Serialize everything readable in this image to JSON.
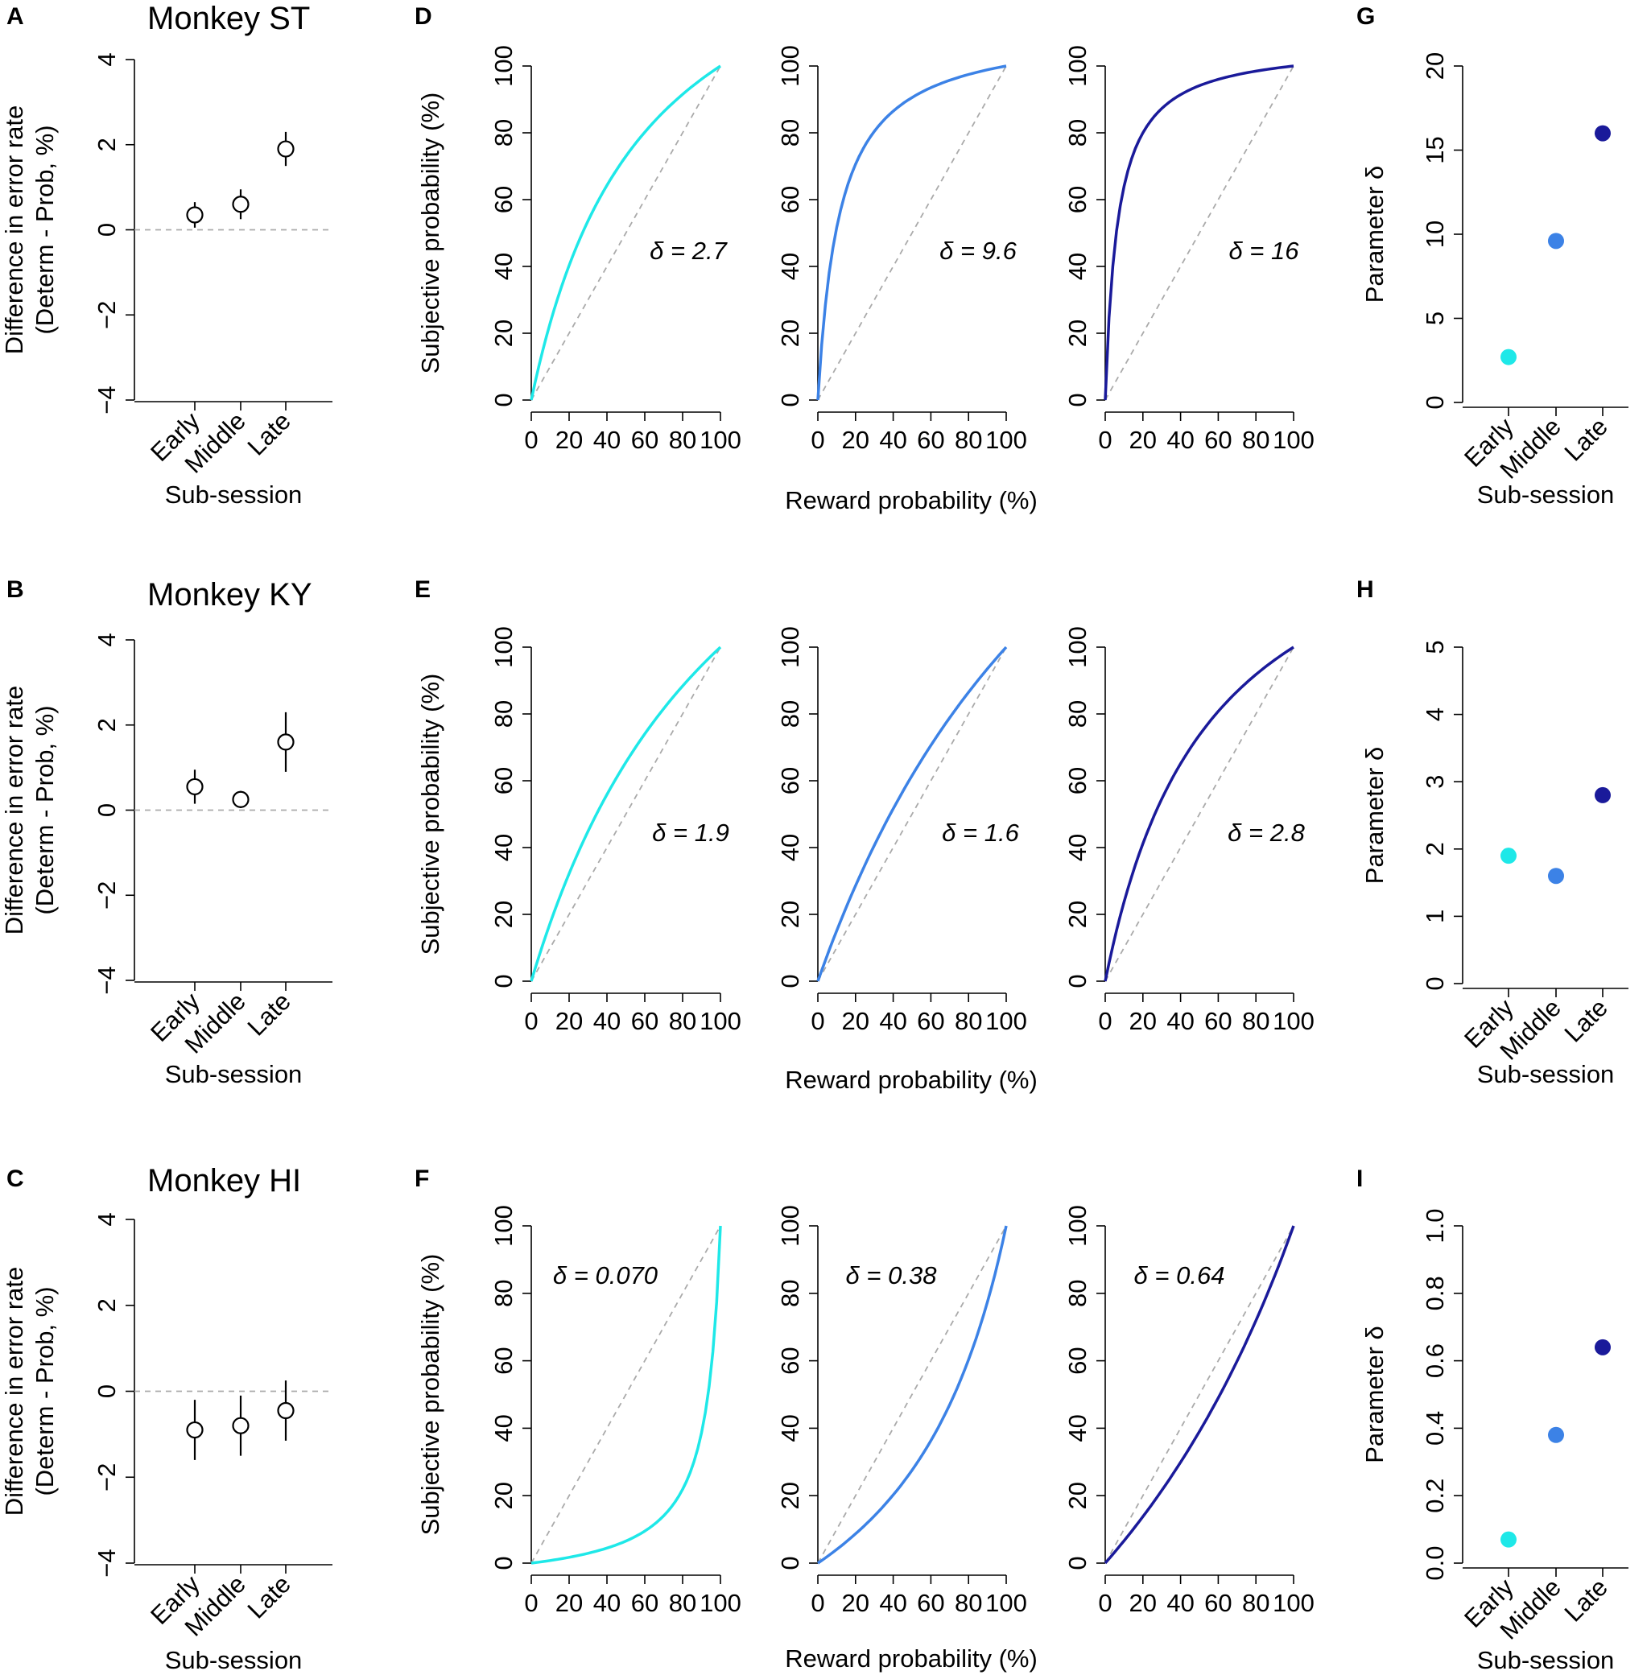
{
  "panel_letters": {
    "A": "A",
    "B": "B",
    "C": "C",
    "D": "D",
    "E": "E",
    "F": "F",
    "G": "G",
    "H": "H",
    "I": "I"
  },
  "x_axis_title_subsession": "Sub-session",
  "x_axis_title_reward": "Reward probability (%)",
  "y_axis_title_error_line1": "Difference in error rate",
  "y_axis_title_error_line2": "(Determ - Prob, %)",
  "y_axis_title_subjective": "Subjective probability (%)",
  "y_axis_title_param": "Parameter δ",
  "colors": {
    "early": "#1ee8e8",
    "middle": "#3c82e6",
    "late": "#1a1a9a",
    "ref_line": "#aaaaaa"
  },
  "chart_data": [
    {
      "id": "A",
      "type": "scatter",
      "title": "Monkey ST",
      "categories": [
        "Early",
        "Middle",
        "Late"
      ],
      "values": [
        0.35,
        0.6,
        1.9
      ],
      "error": [
        0.3,
        0.35,
        0.4
      ],
      "ylim": [
        -4,
        4
      ],
      "yticks": [
        "-4",
        "-2",
        "0",
        "2",
        "4"
      ],
      "reference_line": 0,
      "xlabel": "Sub-session",
      "ylabel": "Difference in error rate (Determ - Prob, %)"
    },
    {
      "id": "B",
      "type": "scatter",
      "title": "Monkey KY",
      "categories": [
        "Early",
        "Middle",
        "Late"
      ],
      "values": [
        0.55,
        0.25,
        1.6
      ],
      "error": [
        0.4,
        0.2,
        0.7
      ],
      "ylim": [
        -4,
        4
      ],
      "yticks": [
        "-4",
        "-2",
        "0",
        "2",
        "4"
      ],
      "reference_line": 0,
      "xlabel": "Sub-session",
      "ylabel": "Difference in error rate (Determ - Prob, %)"
    },
    {
      "id": "C",
      "type": "scatter",
      "title": "Monkey HI",
      "categories": [
        "Early",
        "Middle",
        "Late"
      ],
      "values": [
        -0.9,
        -0.8,
        -0.45
      ],
      "error": [
        0.7,
        0.7,
        0.7
      ],
      "ylim": [
        -4,
        4
      ],
      "yticks": [
        "-4",
        "-2",
        "0",
        "2",
        "4"
      ],
      "reference_line": 0,
      "xlabel": "Sub-session",
      "ylabel": "Difference in error rate (Determ - Prob, %)"
    },
    {
      "id": "D",
      "type": "line",
      "xlabel": "Reward probability (%)",
      "ylabel": "Subjective probability (%)",
      "xlim": [
        0,
        100
      ],
      "ylim": [
        0,
        100
      ],
      "xticks": [
        "0",
        "20",
        "40",
        "60",
        "80",
        "100"
      ],
      "yticks": [
        "0",
        "20",
        "40",
        "60",
        "80",
        "100"
      ],
      "series": [
        {
          "name": "Early",
          "delta": 2.7,
          "label": "δ = 2.7"
        },
        {
          "name": "Middle",
          "delta": 9.6,
          "label": "δ = 9.6"
        },
        {
          "name": "Late",
          "delta": 16,
          "label": "δ = 16"
        }
      ]
    },
    {
      "id": "E",
      "type": "line",
      "xlabel": "Reward probability (%)",
      "ylabel": "Subjective probability (%)",
      "xlim": [
        0,
        100
      ],
      "ylim": [
        0,
        100
      ],
      "xticks": [
        "0",
        "20",
        "40",
        "60",
        "80",
        "100"
      ],
      "yticks": [
        "0",
        "20",
        "40",
        "60",
        "80",
        "100"
      ],
      "series": [
        {
          "name": "Early",
          "delta": 1.9,
          "label": "δ = 1.9"
        },
        {
          "name": "Middle",
          "delta": 1.6,
          "label": "δ = 1.6"
        },
        {
          "name": "Late",
          "delta": 2.8,
          "label": "δ = 2.8"
        }
      ]
    },
    {
      "id": "F",
      "type": "line",
      "xlabel": "Reward probability (%)",
      "ylabel": "Subjective probability (%)",
      "xlim": [
        0,
        100
      ],
      "ylim": [
        0,
        100
      ],
      "xticks": [
        "0",
        "20",
        "40",
        "60",
        "80",
        "100"
      ],
      "yticks": [
        "0",
        "20",
        "40",
        "60",
        "80",
        "100"
      ],
      "series": [
        {
          "name": "Early",
          "delta": 0.07,
          "label": "δ = 0.070"
        },
        {
          "name": "Middle",
          "delta": 0.38,
          "label": "δ = 0.38"
        },
        {
          "name": "Late",
          "delta": 0.64,
          "label": "δ = 0.64"
        }
      ]
    },
    {
      "id": "G",
      "type": "scatter",
      "categories": [
        "Early",
        "Middle",
        "Late"
      ],
      "values": [
        2.7,
        9.6,
        16
      ],
      "ylim": [
        0,
        20
      ],
      "yticks": [
        "0",
        "5",
        "10",
        "15",
        "20"
      ],
      "xlabel": "Sub-session",
      "ylabel": "Parameter δ"
    },
    {
      "id": "H",
      "type": "scatter",
      "categories": [
        "Early",
        "Middle",
        "Late"
      ],
      "values": [
        1.9,
        1.6,
        2.8
      ],
      "ylim": [
        0,
        5
      ],
      "yticks": [
        "0",
        "1",
        "2",
        "3",
        "4",
        "5"
      ],
      "xlabel": "Sub-session",
      "ylabel": "Parameter δ"
    },
    {
      "id": "I",
      "type": "scatter",
      "categories": [
        "Early",
        "Middle",
        "Late"
      ],
      "values": [
        0.07,
        0.38,
        0.64
      ],
      "ylim": [
        0,
        1
      ],
      "yticks": [
        "0.0",
        "0.2",
        "0.4",
        "0.6",
        "0.8",
        "1.0"
      ],
      "xlabel": "Sub-session",
      "ylabel": "Parameter δ"
    }
  ]
}
